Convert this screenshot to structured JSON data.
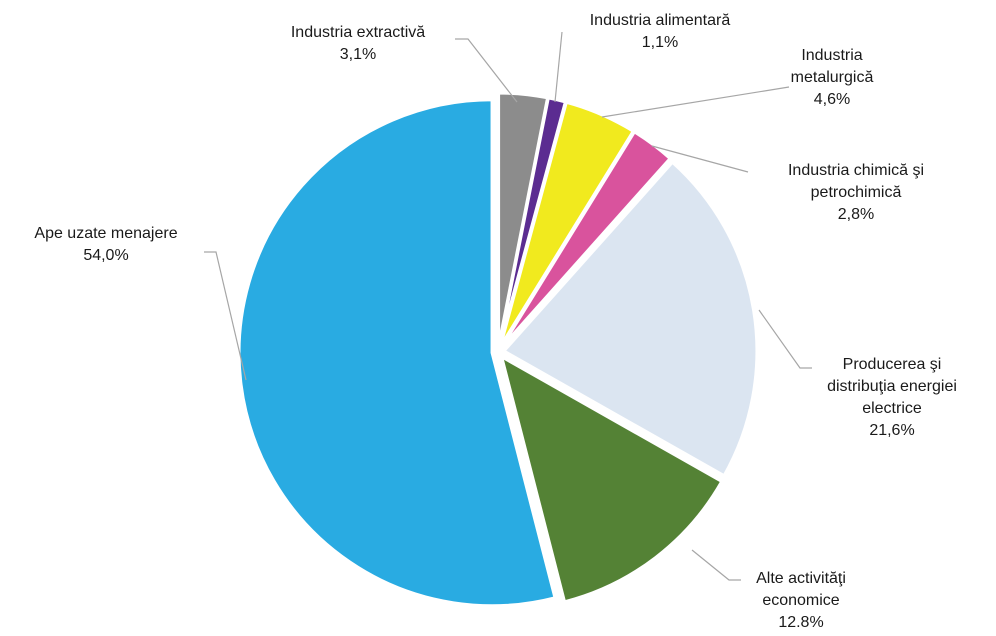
{
  "chart_data": {
    "type": "pie",
    "title": "",
    "start_angle_deg": 0,
    "direction": "clockwise",
    "slices": [
      {
        "name": "Industria extractivă",
        "label_lines": [
          "Industria extractivă"
        ],
        "value_label": "3,1%",
        "value": 3.1,
        "color": "#8c8c8c"
      },
      {
        "name": "Industria alimentară",
        "label_lines": [
          "Industria alimentară"
        ],
        "value_label": "1,1%",
        "value": 1.1,
        "color": "#5b2c91"
      },
      {
        "name": "Industria metalurgică",
        "label_lines": [
          "Industria",
          "metalurgică"
        ],
        "value_label": "4,6%",
        "value": 4.6,
        "color": "#f1ea1e"
      },
      {
        "name": "Industria chimică şi petrochimică",
        "label_lines": [
          "Industria chimică şi",
          "petrochimică"
        ],
        "value_label": "2,8%",
        "value": 2.8,
        "color": "#d9539d"
      },
      {
        "name": "Producerea şi distribuţia energiei electrice",
        "label_lines": [
          "Producerea şi",
          "distribuţia energiei",
          "electrice"
        ],
        "value_label": "21,6%",
        "value": 21.6,
        "color": "#dbe5f1"
      },
      {
        "name": "Alte activităţi economice",
        "label_lines": [
          "Alte activităţi",
          "economice"
        ],
        "value_label": "12.8%",
        "value": 12.8,
        "color": "#548235"
      },
      {
        "name": "Ape uzate menajere",
        "label_lines": [
          "Ape uzate menajere"
        ],
        "value_label": "54,0%",
        "value": 54.0,
        "color": "#29abe2"
      }
    ]
  }
}
